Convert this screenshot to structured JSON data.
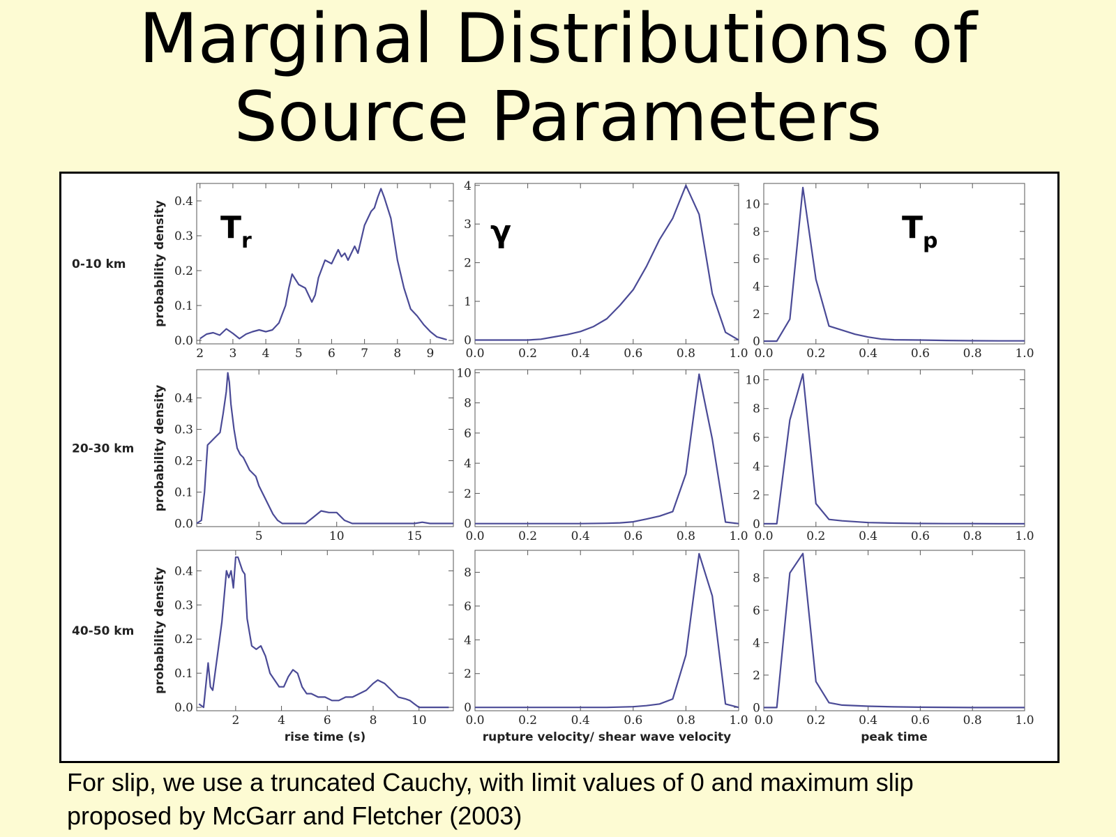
{
  "slide": {
    "title_line1": "Marginal Distributions of",
    "title_line2": "Source Parameters",
    "caption_line1": "For slip, we use a truncated Cauchy, with limit values of 0 and maximum slip",
    "caption_line2": "proposed by McGarr and Fletcher (2003)"
  },
  "colors": {
    "background": "#fdfbd3",
    "line": "#4a4a96",
    "panel": "#ffffff"
  },
  "row_labels": [
    "0-10 km",
    "20-30 km",
    "40-50 km"
  ],
  "column_symbols": [
    {
      "main": "T",
      "sub": "r"
    },
    {
      "main": "γ",
      "sub": ""
    },
    {
      "main": "T",
      "sub": "p"
    }
  ],
  "chart_data": [
    {
      "type": "line",
      "row": 0,
      "col": 0,
      "ylabel": "probability density",
      "xlabel": "",
      "xlim": [
        1.9,
        9.7
      ],
      "ylim": [
        -0.01,
        0.45
      ],
      "xticks": [
        2,
        3,
        4,
        5,
        6,
        7,
        8,
        9
      ],
      "xtick_labels": [
        "2",
        "3",
        "4",
        "5",
        "6",
        "7",
        "8",
        "9"
      ],
      "yticks": [
        0.0,
        0.1,
        0.2,
        0.3,
        0.4
      ],
      "ytick_labels": [
        "0.0",
        "0.1",
        "0.2",
        "0.3",
        "0.4"
      ],
      "x": [
        2.0,
        2.2,
        2.4,
        2.6,
        2.8,
        3.0,
        3.2,
        3.4,
        3.6,
        3.8,
        4.0,
        4.2,
        4.4,
        4.6,
        4.7,
        4.8,
        4.9,
        5.0,
        5.2,
        5.4,
        5.5,
        5.6,
        5.8,
        6.0,
        6.2,
        6.3,
        6.4,
        6.5,
        6.6,
        6.7,
        6.8,
        7.0,
        7.2,
        7.3,
        7.4,
        7.5,
        7.6,
        7.8,
        8.0,
        8.2,
        8.4,
        8.6,
        8.8,
        9.0,
        9.2,
        9.5
      ],
      "y": [
        0.005,
        0.018,
        0.022,
        0.015,
        0.033,
        0.02,
        0.005,
        0.018,
        0.025,
        0.03,
        0.025,
        0.03,
        0.05,
        0.1,
        0.15,
        0.19,
        0.175,
        0.16,
        0.15,
        0.11,
        0.13,
        0.18,
        0.23,
        0.22,
        0.26,
        0.24,
        0.25,
        0.23,
        0.25,
        0.27,
        0.25,
        0.33,
        0.37,
        0.38,
        0.41,
        0.435,
        0.41,
        0.35,
        0.23,
        0.15,
        0.09,
        0.07,
        0.045,
        0.025,
        0.01,
        0.002
      ]
    },
    {
      "type": "line",
      "row": 0,
      "col": 1,
      "ylabel": "",
      "xlabel": "",
      "xlim": [
        0.0,
        1.0
      ],
      "ylim": [
        -0.1,
        4.05
      ],
      "xticks": [
        0.0,
        0.2,
        0.4,
        0.6,
        0.8,
        1.0
      ],
      "xtick_labels": [
        "0.0",
        "0.2",
        "0.4",
        "0.6",
        "0.8",
        "1.0"
      ],
      "yticks": [
        0,
        1,
        2,
        3,
        4
      ],
      "ytick_labels": [
        "0",
        "1",
        "2",
        "3",
        "4"
      ],
      "x": [
        0.0,
        0.1,
        0.2,
        0.25,
        0.3,
        0.35,
        0.4,
        0.45,
        0.5,
        0.55,
        0.6,
        0.65,
        0.7,
        0.75,
        0.8,
        0.85,
        0.9,
        0.95,
        1.0
      ],
      "y": [
        0.0,
        0.0,
        0.0,
        0.02,
        0.08,
        0.14,
        0.22,
        0.35,
        0.55,
        0.9,
        1.3,
        1.9,
        2.6,
        3.15,
        4.0,
        3.25,
        1.2,
        0.2,
        0.0
      ]
    },
    {
      "type": "line",
      "row": 0,
      "col": 2,
      "ylabel": "",
      "xlabel": "",
      "xlim": [
        0.0,
        1.0
      ],
      "ylim": [
        -0.2,
        11.5
      ],
      "xticks": [
        0.0,
        0.2,
        0.4,
        0.6,
        0.8,
        1.0
      ],
      "xtick_labels": [
        "0.0",
        "0.2",
        "0.4",
        "0.6",
        "0.8",
        "1.0"
      ],
      "yticks": [
        0,
        2,
        4,
        6,
        8,
        10
      ],
      "ytick_labels": [
        "0",
        "2",
        "4",
        "6",
        "8",
        "10"
      ],
      "x": [
        0.0,
        0.05,
        0.1,
        0.15,
        0.2,
        0.25,
        0.3,
        0.35,
        0.4,
        0.45,
        0.5,
        0.6,
        0.7,
        0.8,
        0.9,
        1.0
      ],
      "y": [
        0.0,
        0.0,
        1.6,
        11.2,
        4.5,
        1.1,
        0.8,
        0.5,
        0.3,
        0.15,
        0.1,
        0.08,
        0.05,
        0.03,
        0.02,
        0.02
      ]
    },
    {
      "type": "line",
      "row": 1,
      "col": 0,
      "ylabel": "probability density",
      "xlabel": "",
      "xlim": [
        1.0,
        17.5
      ],
      "ylim": [
        -0.01,
        0.49
      ],
      "xticks": [
        5,
        10,
        15
      ],
      "xtick_labels": [
        "5",
        "10",
        "15"
      ],
      "yticks": [
        0.0,
        0.1,
        0.2,
        0.3,
        0.4
      ],
      "ytick_labels": [
        "0.0",
        "0.1",
        "0.2",
        "0.3",
        "0.4"
      ],
      "x": [
        1.0,
        1.3,
        1.5,
        1.7,
        1.9,
        2.1,
        2.3,
        2.5,
        2.7,
        2.9,
        3.0,
        3.1,
        3.2,
        3.4,
        3.6,
        3.8,
        4.0,
        4.2,
        4.4,
        4.6,
        4.8,
        5.0,
        5.3,
        5.6,
        5.9,
        6.2,
        6.5,
        7.0,
        7.5,
        8.0,
        8.5,
        9.0,
        9.5,
        10.0,
        10.5,
        11.0,
        12.0,
        13.0,
        14.0,
        15.0,
        15.5,
        16.0,
        17.0,
        17.5
      ],
      "y": [
        0.0,
        0.01,
        0.1,
        0.25,
        0.26,
        0.27,
        0.28,
        0.29,
        0.35,
        0.42,
        0.48,
        0.45,
        0.38,
        0.3,
        0.24,
        0.22,
        0.21,
        0.19,
        0.17,
        0.16,
        0.15,
        0.12,
        0.09,
        0.06,
        0.03,
        0.01,
        0.0,
        0.0,
        0.0,
        0.0,
        0.02,
        0.04,
        0.035,
        0.035,
        0.01,
        0.0,
        0.0,
        0.0,
        0.0,
        0.0,
        0.004,
        0.0,
        0.0,
        0.0
      ]
    },
    {
      "type": "line",
      "row": 1,
      "col": 1,
      "ylabel": "",
      "xlabel": "",
      "xlim": [
        0.0,
        1.0
      ],
      "ylim": [
        -0.2,
        10.2
      ],
      "xticks": [
        0.0,
        0.2,
        0.4,
        0.6,
        0.8,
        1.0
      ],
      "xtick_labels": [
        "0.0",
        "0.2",
        "0.4",
        "0.6",
        "0.8",
        "1.0"
      ],
      "yticks": [
        0,
        2,
        4,
        6,
        8,
        10
      ],
      "ytick_labels": [
        "0",
        "2",
        "4",
        "6",
        "8",
        "10"
      ],
      "x": [
        0.0,
        0.1,
        0.2,
        0.3,
        0.4,
        0.5,
        0.55,
        0.6,
        0.65,
        0.7,
        0.75,
        0.8,
        0.85,
        0.9,
        0.95,
        1.0
      ],
      "y": [
        0.0,
        0.0,
        0.0,
        0.0,
        0.0,
        0.02,
        0.05,
        0.12,
        0.3,
        0.5,
        0.8,
        3.3,
        9.9,
        5.6,
        0.1,
        0.0
      ]
    },
    {
      "type": "line",
      "row": 1,
      "col": 2,
      "ylabel": "",
      "xlabel": "",
      "xlim": [
        0.0,
        1.0
      ],
      "ylim": [
        -0.2,
        10.7
      ],
      "xticks": [
        0.0,
        0.2,
        0.4,
        0.6,
        0.8,
        1.0
      ],
      "xtick_labels": [
        "0.0",
        "0.2",
        "0.4",
        "0.6",
        "0.8",
        "1.0"
      ],
      "yticks": [
        0,
        2,
        4,
        6,
        8,
        10
      ],
      "ytick_labels": [
        "0",
        "2",
        "4",
        "6",
        "8",
        "10"
      ],
      "x": [
        0.0,
        0.05,
        0.1,
        0.15,
        0.2,
        0.25,
        0.3,
        0.4,
        0.5,
        0.6,
        0.7,
        0.8,
        0.9,
        1.0
      ],
      "y": [
        0.0,
        0.0,
        7.2,
        10.4,
        1.4,
        0.3,
        0.2,
        0.08,
        0.04,
        0.02,
        0.01,
        0.01,
        0.0,
        0.0
      ]
    },
    {
      "type": "line",
      "row": 2,
      "col": 0,
      "ylabel": "probability density",
      "xlabel": "rise time (s)",
      "xlim": [
        0.3,
        11.5
      ],
      "ylim": [
        -0.01,
        0.46
      ],
      "xticks": [
        2,
        4,
        6,
        8,
        10
      ],
      "xtick_labels": [
        "2",
        "4",
        "6",
        "8",
        "10"
      ],
      "yticks": [
        0.0,
        0.1,
        0.2,
        0.3,
        0.4
      ],
      "ytick_labels": [
        "0.0",
        "0.1",
        "0.2",
        "0.3",
        "0.4"
      ],
      "x": [
        0.4,
        0.6,
        0.8,
        0.9,
        1.0,
        1.2,
        1.4,
        1.6,
        1.7,
        1.8,
        1.9,
        2.0,
        2.1,
        2.2,
        2.3,
        2.4,
        2.5,
        2.7,
        2.9,
        3.1,
        3.3,
        3.5,
        3.7,
        3.9,
        4.1,
        4.3,
        4.5,
        4.7,
        4.9,
        5.1,
        5.3,
        5.6,
        5.9,
        6.2,
        6.5,
        6.8,
        7.1,
        7.4,
        7.7,
        8.0,
        8.2,
        8.5,
        8.8,
        9.1,
        9.4,
        9.6,
        9.8,
        10.0,
        10.5,
        11.0,
        11.3
      ],
      "y": [
        0.01,
        0.0,
        0.13,
        0.06,
        0.05,
        0.15,
        0.25,
        0.4,
        0.38,
        0.4,
        0.35,
        0.44,
        0.44,
        0.42,
        0.4,
        0.39,
        0.26,
        0.18,
        0.17,
        0.18,
        0.15,
        0.1,
        0.08,
        0.06,
        0.06,
        0.09,
        0.11,
        0.1,
        0.06,
        0.04,
        0.04,
        0.03,
        0.03,
        0.02,
        0.02,
        0.03,
        0.03,
        0.04,
        0.05,
        0.07,
        0.08,
        0.07,
        0.05,
        0.03,
        0.025,
        0.02,
        0.01,
        0.0,
        0.0,
        0.0,
        0.0
      ]
    },
    {
      "type": "line",
      "row": 2,
      "col": 1,
      "ylabel": "",
      "xlabel": "rupture velocity/ shear wave velocity",
      "xlim": [
        0.0,
        1.0
      ],
      "ylim": [
        -0.2,
        9.3
      ],
      "xticks": [
        0.0,
        0.2,
        0.4,
        0.6,
        0.8,
        1.0
      ],
      "xtick_labels": [
        "0.0",
        "0.2",
        "0.4",
        "0.6",
        "0.8",
        "1.0"
      ],
      "yticks": [
        0,
        2,
        4,
        6,
        8
      ],
      "ytick_labels": [
        "0",
        "2",
        "4",
        "6",
        "8"
      ],
      "x": [
        0.0,
        0.1,
        0.2,
        0.3,
        0.4,
        0.5,
        0.55,
        0.6,
        0.65,
        0.7,
        0.75,
        0.8,
        0.85,
        0.9,
        0.95,
        1.0
      ],
      "y": [
        0.0,
        0.0,
        0.0,
        0.0,
        0.0,
        0.0,
        0.02,
        0.04,
        0.1,
        0.2,
        0.5,
        3.1,
        9.1,
        6.6,
        0.2,
        0.0
      ]
    },
    {
      "type": "line",
      "row": 2,
      "col": 2,
      "ylabel": "",
      "xlabel": "peak time",
      "xlim": [
        0.0,
        1.0
      ],
      "ylim": [
        -0.2,
        9.7
      ],
      "xticks": [
        0.0,
        0.2,
        0.4,
        0.6,
        0.8,
        1.0
      ],
      "xtick_labels": [
        "0.0",
        "0.2",
        "0.4",
        "0.6",
        "0.8",
        "1.0"
      ],
      "yticks": [
        0,
        2,
        4,
        6,
        8
      ],
      "ytick_labels": [
        "0",
        "2",
        "4",
        "6",
        "8"
      ],
      "x": [
        0.0,
        0.05,
        0.1,
        0.15,
        0.2,
        0.25,
        0.3,
        0.4,
        0.5,
        0.6,
        0.7,
        0.8,
        0.9,
        1.0
      ],
      "y": [
        0.0,
        0.0,
        8.3,
        9.5,
        1.6,
        0.3,
        0.15,
        0.08,
        0.04,
        0.02,
        0.01,
        0.0,
        0.0,
        0.0
      ]
    }
  ]
}
